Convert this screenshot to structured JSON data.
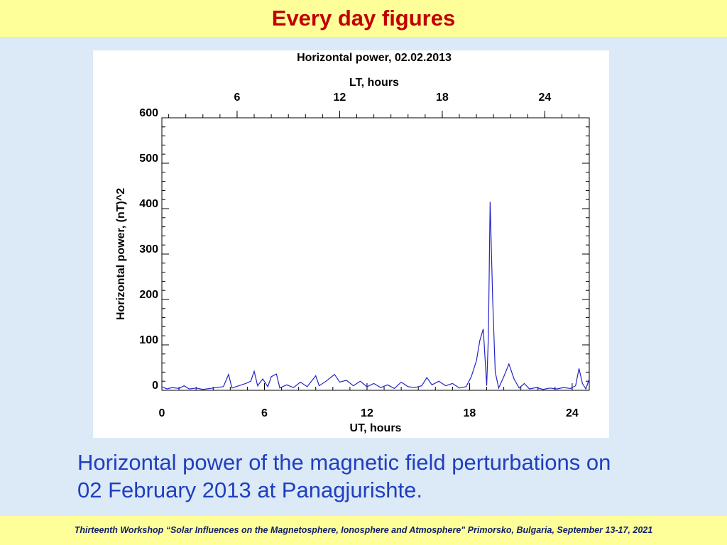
{
  "header": {
    "title": "Every day figures"
  },
  "chart_data": {
    "type": "line",
    "title": "Horizontal power, 02.02.2013",
    "x2_label": "LT, hours",
    "x_label": "UT, hours",
    "y_label": "Horizontal power, (nT)^2",
    "xlim": [
      0,
      25
    ],
    "xticks": [
      0,
      6,
      12,
      18,
      24
    ],
    "x2lim": [
      1.6,
      26.6
    ],
    "x2ticks": [
      6,
      12,
      18,
      24
    ],
    "ylim": [
      0,
      600
    ],
    "yticks": [
      0,
      100,
      200,
      300,
      400,
      500,
      600
    ],
    "series": [
      {
        "color": "#2424c8",
        "x": [
          0,
          0.3,
          0.6,
          1.0,
          1.3,
          1.6,
          2.0,
          2.4,
          2.8,
          3.2,
          3.6,
          3.9,
          4.1,
          4.5,
          4.9,
          5.2,
          5.4,
          5.6,
          5.9,
          6.2,
          6.4,
          6.7,
          6.9,
          7.3,
          7.7,
          8.1,
          8.5,
          9.0,
          9.2,
          9.6,
          10.1,
          10.4,
          10.8,
          11.2,
          11.6,
          12.0,
          12.4,
          12.8,
          13.2,
          13.6,
          14.0,
          14.4,
          14.8,
          15.2,
          15.5,
          15.8,
          16.2,
          16.6,
          17.0,
          17.4,
          17.8,
          18.1,
          18.4,
          18.6,
          18.8,
          19.0,
          19.1,
          19.2,
          19.35,
          19.5,
          19.7,
          20.0,
          20.3,
          20.6,
          20.9,
          21.2,
          21.5,
          21.9,
          22.3,
          22.7,
          23.1,
          23.5,
          23.9,
          24.2,
          24.4,
          24.6,
          24.8,
          25.0
        ],
        "values": [
          8,
          3,
          6,
          4,
          10,
          3,
          5,
          2,
          4,
          6,
          8,
          35,
          5,
          10,
          15,
          20,
          42,
          10,
          25,
          8,
          30,
          36,
          5,
          12,
          6,
          18,
          8,
          32,
          10,
          20,
          35,
          18,
          22,
          10,
          20,
          8,
          15,
          6,
          12,
          4,
          18,
          8,
          6,
          10,
          28,
          12,
          20,
          10,
          15,
          5,
          8,
          30,
          65,
          110,
          135,
          10,
          120,
          415,
          200,
          40,
          5,
          30,
          58,
          25,
          5,
          15,
          3,
          6,
          2,
          5,
          3,
          6,
          4,
          10,
          48,
          15,
          3,
          25
        ]
      }
    ]
  },
  "caption": {
    "lines": [
      "Horizontal power of the magnetic field perturbations on",
      "02 February 2013 at Panagjurishte."
    ]
  },
  "footer": {
    "text": "Thirteenth Workshop “Solar Influences on the Magnetosphere, Ionosphere and Atmosphere\" Primorsko, Bulgaria, September  13-17, 2021"
  }
}
